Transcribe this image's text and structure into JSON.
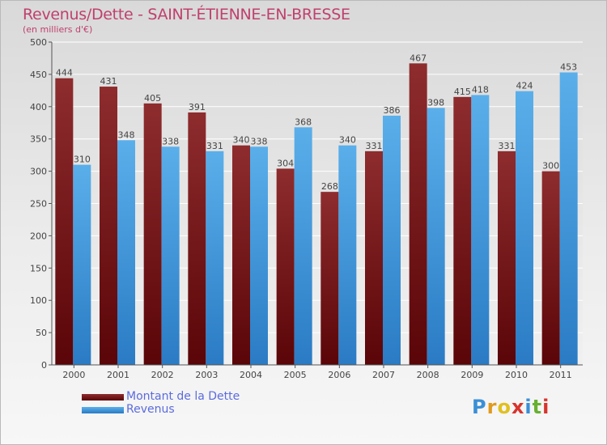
{
  "chart_data": {
    "type": "bar",
    "title": "Revenus/Dette - SAINT-ÉTIENNE-EN-BRESSE",
    "subtitle": "(en milliers d'€)",
    "categories": [
      "2000",
      "2001",
      "2002",
      "2003",
      "2004",
      "2005",
      "2006",
      "2007",
      "2008",
      "2009",
      "2010",
      "2011"
    ],
    "series": [
      {
        "name": "Montant de la Dette",
        "values": [
          444,
          431,
          405,
          391,
          340,
          304,
          268,
          331,
          467,
          415,
          331,
          300
        ],
        "color": "#7a1a1c"
      },
      {
        "name": "Revenus",
        "values": [
          310,
          348,
          338,
          331,
          338,
          368,
          340,
          386,
          398,
          418,
          424,
          453
        ],
        "color": "#4fa3e3"
      }
    ],
    "ylim": [
      0,
      500
    ],
    "yticks": [
      0,
      50,
      100,
      150,
      200,
      250,
      300,
      350,
      400,
      450,
      500
    ],
    "grid": true,
    "legend_position": "bottom-left"
  },
  "logo": {
    "letters": [
      "P",
      "r",
      "o",
      "x",
      "i",
      "t",
      "i"
    ],
    "colors": [
      "#3a8fd6",
      "#e09a1c",
      "#e0c020",
      "#d8342c",
      "#3a8fd6",
      "#68b030",
      "#d8342c"
    ]
  }
}
